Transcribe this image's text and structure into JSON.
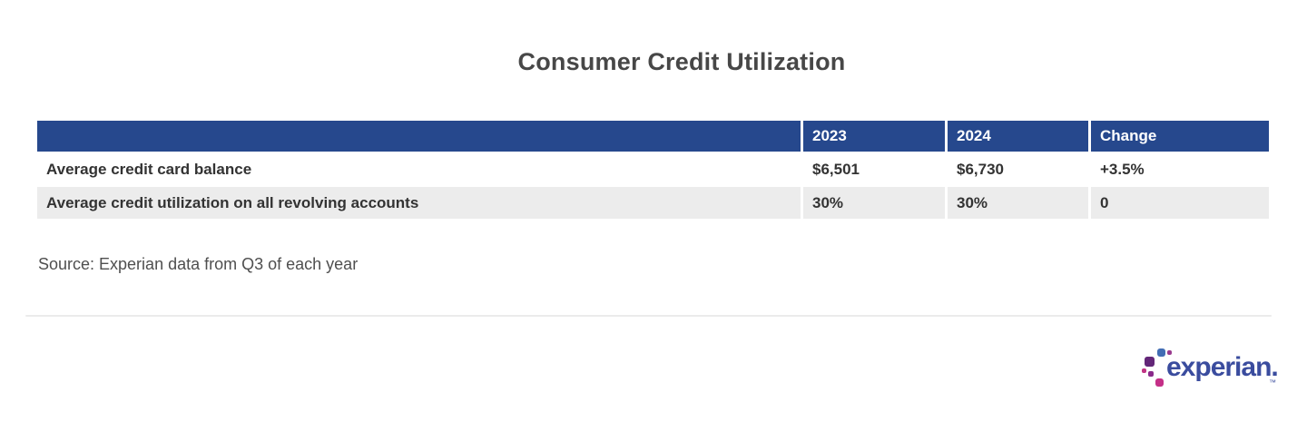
{
  "title": "Consumer Credit Utilization",
  "table": {
    "columns": [
      "",
      "2023",
      "2024",
      "Change"
    ],
    "rows": [
      {
        "label": "Average credit card balance",
        "values": [
          "$6,501",
          "$6,730",
          "+3.5%"
        ]
      },
      {
        "label": "Average credit utilization on all revolving accounts",
        "values": [
          "30%",
          "30%",
          "0"
        ]
      }
    ]
  },
  "source": "Source: Experian data from Q3 of each year",
  "logo": {
    "wordmark": "experian.",
    "trademark": "™"
  },
  "colors": {
    "header_bg": "#26488d",
    "header_text": "#ffffff",
    "row_alt_bg": "#ececec",
    "body_text": "#333333",
    "title_text": "#474747",
    "logo_indigo": "#3a4c9e",
    "logo_blue": "#426db4",
    "logo_violet": "#632678",
    "logo_magenta": "#c42f87"
  },
  "chart_data": {
    "type": "table",
    "title": "Consumer Credit Utilization",
    "columns": [
      "",
      "2023",
      "2024",
      "Change"
    ],
    "rows": [
      [
        "Average credit card balance",
        "$6,501",
        "$6,730",
        "+3.5%"
      ],
      [
        "Average credit utilization on all revolving accounts",
        "30%",
        "30%",
        "0"
      ]
    ],
    "source": "Source: Experian data from Q3 of each year"
  }
}
